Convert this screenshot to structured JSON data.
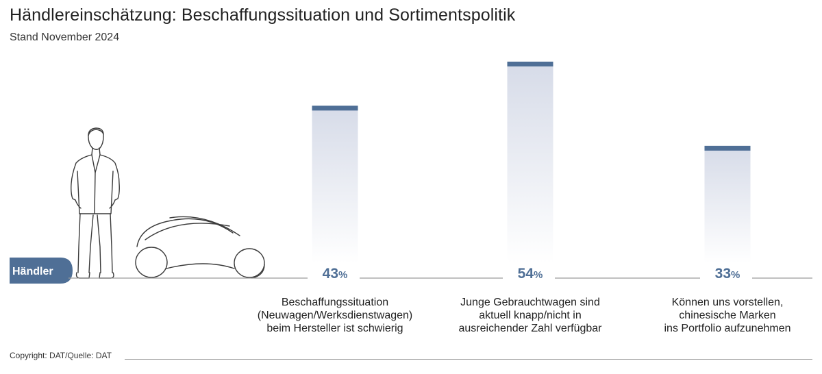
{
  "title": "Händlereinschätzung: Beschaffungssituation und Sortimentspolitik",
  "subtitle": "Stand November 2024",
  "footer": "Copyright: DAT/Quelle: DAT",
  "badge_label": "Händler",
  "value_suffix": "%",
  "colors": {
    "accent": "#4f6f96",
    "bar_top": "#d6dbe8",
    "bar_bottom": "#ffffff",
    "badge": "#4f6f96",
    "axis": "#9a9a9a",
    "illustration": "#3a3a3a"
  },
  "chart_data": {
    "type": "bar",
    "categories": [
      "Beschaffungssituation\n(Neuwagen/Werksdienstwagen)\nbeim Hersteller ist schwierig",
      "Junge Gebrauchtwagen sind\naktuell knapp/nicht in\nausreichender Zahl verfügbar",
      "Können uns vorstellen,\nchinesische Marken\nins Portfolio aufzunehmen"
    ],
    "values": [
      43,
      54,
      33
    ],
    "ylim": [
      0,
      60
    ],
    "grid": false,
    "legend": "none"
  }
}
